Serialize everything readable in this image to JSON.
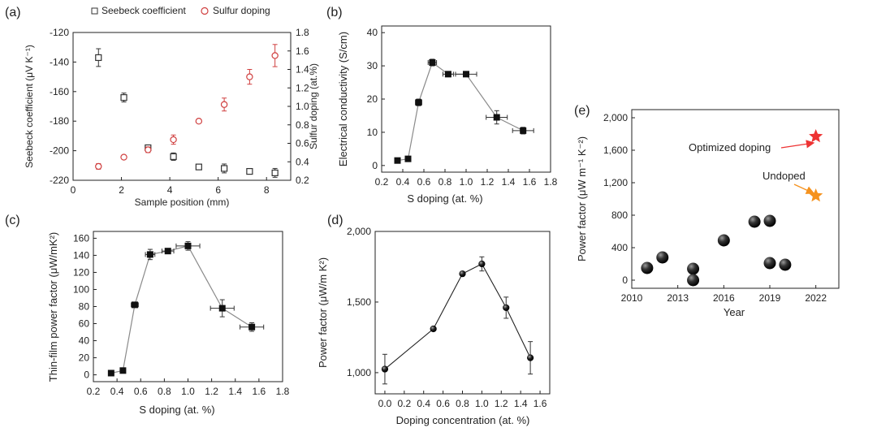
{
  "chart_data": [
    {
      "panel_label": "(a)",
      "type": "scatter",
      "xlabel": "Sample position (mm)",
      "ylabel": "Seebeck coefficient (μV K⁻¹)",
      "ylabel2": "Sulfur doping (at.%)",
      "xlim": [
        0,
        9
      ],
      "ylim": [
        -220,
        -120
      ],
      "ylim2": [
        0.2,
        1.8
      ],
      "xticks": [
        "0",
        "2",
        "4",
        "6",
        "8"
      ],
      "yticks": [
        "-220",
        "-200",
        "-180",
        "-160",
        "-140",
        "-120"
      ],
      "yticks2": [
        "1.8",
        "1.6",
        "1.4",
        "1.2",
        "1.0",
        "0.8",
        "0.6",
        "0.4",
        "0.2"
      ],
      "series": [
        {
          "name": "Seebeck coefficient",
          "axis": "left",
          "marker": "square",
          "color": "#333333",
          "x": [
            1.05,
            2.1,
            3.1,
            4.15,
            5.2,
            6.25,
            7.3,
            8.35
          ],
          "y": [
            -137,
            -164,
            -198,
            -204,
            -211,
            -212,
            -214,
            -215
          ],
          "err": [
            6,
            3,
            0,
            2.5,
            1.5,
            3,
            1.5,
            3
          ]
        },
        {
          "name": "Sulfur doping",
          "axis": "right",
          "marker": "circle",
          "color": "#d04040",
          "x": [
            1.05,
            2.1,
            3.1,
            4.15,
            5.2,
            6.25,
            7.3,
            8.35
          ],
          "y": [
            0.35,
            0.45,
            0.53,
            0.64,
            0.84,
            1.02,
            1.32,
            1.55
          ],
          "err": [
            0.03,
            0.02,
            0.03,
            0.05,
            0.02,
            0.07,
            0.08,
            0.12
          ]
        }
      ]
    },
    {
      "panel_label": "(b)",
      "type": "line",
      "xlabel": "S doping (at. %)",
      "ylabel": "Electrical conductivity (S/cm)",
      "xlim": [
        0.2,
        1.8
      ],
      "ylim": [
        -2,
        42
      ],
      "xticks": [
        "0.2",
        "0.4",
        "0.6",
        "0.8",
        "1.0",
        "1.2",
        "1.4",
        "1.6",
        "1.8"
      ],
      "yticks": [
        "0",
        "10",
        "20",
        "30",
        "40"
      ],
      "x": [
        0.35,
        0.45,
        0.55,
        0.68,
        0.83,
        1.0,
        1.29,
        1.54
      ],
      "y": [
        1.5,
        2,
        19,
        31,
        27.5,
        27.5,
        14.5,
        10.5
      ],
      "yerr": [
        0,
        0,
        1,
        1,
        0.5,
        0.5,
        2,
        1
      ],
      "xerr": [
        0,
        0,
        0.03,
        0.04,
        0.05,
        0.1,
        0.1,
        0.1
      ]
    },
    {
      "panel_label": "(c)",
      "type": "line",
      "xlabel": "S doping (at. %)",
      "ylabel": "Thin-film power factor (μW/mK²)",
      "xlim": [
        0.2,
        1.8
      ],
      "ylim": [
        -8,
        168
      ],
      "xticks": [
        "0.2",
        "0.4",
        "0.6",
        "0.8",
        "1.0",
        "1.2",
        "1.4",
        "1.6",
        "1.8"
      ],
      "yticks": [
        "0",
        "20",
        "40",
        "60",
        "80",
        "100",
        "120",
        "140",
        "160"
      ],
      "x": [
        0.35,
        0.45,
        0.55,
        0.68,
        0.83,
        1.0,
        1.29,
        1.54
      ],
      "y": [
        2,
        5,
        82,
        141,
        145,
        151,
        78,
        56
      ],
      "yerr": [
        0,
        0,
        3,
        6,
        3,
        5,
        10,
        5
      ],
      "xerr": [
        0,
        0,
        0.03,
        0.04,
        0.05,
        0.1,
        0.1,
        0.1
      ]
    },
    {
      "panel_label": "(d)",
      "type": "line",
      "xlabel": "Doping concentration (at. %)",
      "ylabel": "Power factor (μW/m K²)",
      "xlim": [
        -0.1,
        1.7
      ],
      "ylim": [
        850,
        2000
      ],
      "xticks": [
        "0.0",
        "0.2",
        "0.4",
        "0.6",
        "0.8",
        "1.0",
        "1.2",
        "1.4",
        "1.6"
      ],
      "yticks": [
        "1,000",
        "1,500",
        "2,000"
      ],
      "x": [
        0.0,
        0.5,
        0.8,
        1.0,
        1.25,
        1.5
      ],
      "y": [
        1025,
        1310,
        1700,
        1770,
        1460,
        1105
      ],
      "yerr": [
        105,
        0,
        0,
        50,
        75,
        115
      ]
    },
    {
      "panel_label": "(e)",
      "type": "scatter",
      "xlabel": "Year",
      "ylabel": "Power factor (μW m⁻¹ K⁻²)",
      "xlim": [
        2010,
        2023.5
      ],
      "ylim": [
        -100,
        2100
      ],
      "xticks": [
        "2010",
        "2013",
        "2016",
        "2019",
        "2022"
      ],
      "yticks": [
        "0",
        "400",
        "800",
        "1,200",
        "1,600",
        "2,000"
      ],
      "x": [
        2011,
        2012,
        2014,
        2014,
        2016,
        2018,
        2019,
        2019,
        2020
      ],
      "y": [
        150,
        280,
        140,
        0,
        490,
        720,
        730,
        210,
        190
      ],
      "highlights": [
        {
          "label": "Optimized doping",
          "x": 2022,
          "y": 1770,
          "color": "#ee3333"
        },
        {
          "label": "Undoped",
          "x": 2022,
          "y": 1040,
          "color": "#f5921e"
        }
      ]
    }
  ]
}
